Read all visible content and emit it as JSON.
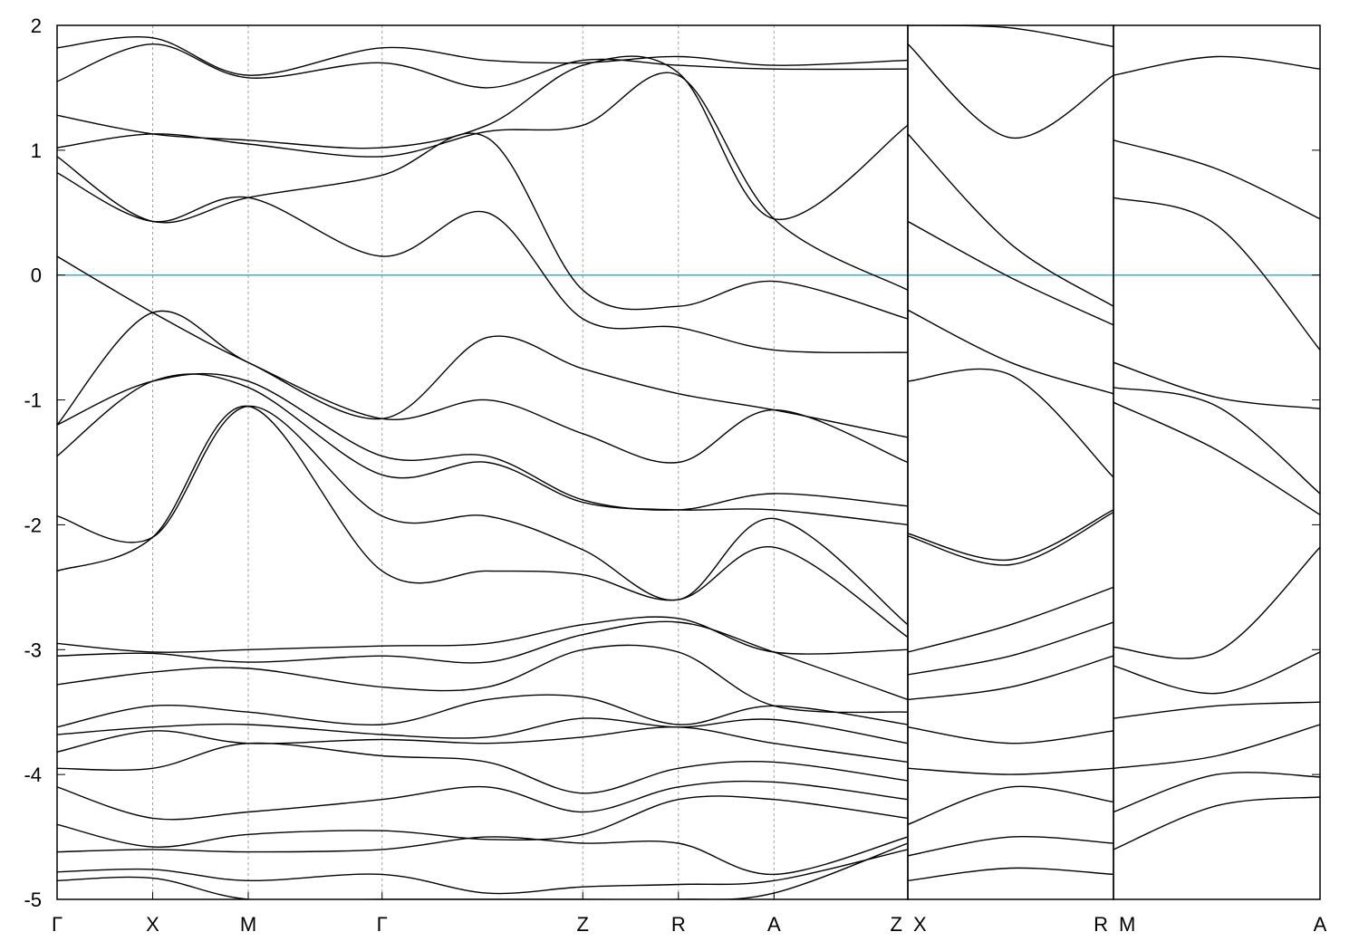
{
  "chart_data": {
    "type": "line",
    "title": "",
    "xlabel": "",
    "ylabel": "",
    "ylim": [
      -5,
      2
    ],
    "yticks": [
      "2",
      "1",
      "0",
      "-1",
      "-2",
      "-3",
      "-4",
      "-5"
    ],
    "fermi_level": 0,
    "colors": {
      "bands": "#000000",
      "fermi": "#4aa8c8",
      "separator": "#a0a0a0"
    },
    "kpoint_labels": [
      "Γ",
      "X",
      "M",
      "Γ",
      "Z",
      "R",
      "A",
      "Z",
      "X",
      "R",
      "M",
      "A"
    ],
    "segments": [
      {
        "path": [
          "Γ",
          "X",
          "M",
          "Γ",
          "Z",
          "R",
          "A",
          "Z"
        ],
        "kticks": [
          0,
          1,
          2,
          3.4,
          5.5,
          6.5,
          7.5,
          8.9
        ],
        "series": [
          {
            "k": [
              0,
              1,
              2,
              3.4,
              4.5,
              5.5,
              6.5,
              7.5,
              8.9
            ],
            "E": [
              -4.85,
              -4.83,
              -5.0,
              -5.0,
              -5.0,
              -5.0,
              -5.0,
              -4.95,
              -4.55
            ]
          },
          {
            "k": [
              0,
              1,
              2,
              3.4,
              4.5,
              5.5,
              6.5,
              7.5,
              8.9
            ],
            "E": [
              -4.78,
              -4.76,
              -4.85,
              -4.8,
              -4.95,
              -4.9,
              -4.88,
              -4.85,
              -4.6
            ]
          },
          {
            "k": [
              0,
              1,
              2,
              3.4,
              4.5,
              5.5,
              6.5,
              7.5,
              8.9
            ],
            "E": [
              -4.62,
              -4.6,
              -4.62,
              -4.6,
              -4.5,
              -4.55,
              -4.55,
              -4.8,
              -4.5
            ]
          },
          {
            "k": [
              0,
              1,
              2,
              3.4,
              4.5,
              5.5,
              6.5,
              7.5,
              8.9
            ],
            "E": [
              -4.4,
              -4.58,
              -4.48,
              -4.45,
              -4.52,
              -4.48,
              -4.2,
              -4.2,
              -4.35
            ]
          },
          {
            "k": [
              0,
              1,
              2,
              3.4,
              4.5,
              5.5,
              6.5,
              7.5,
              8.9
            ],
            "E": [
              -4.1,
              -4.35,
              -4.3,
              -4.2,
              -4.1,
              -4.3,
              -4.1,
              -4.06,
              -4.2
            ]
          },
          {
            "k": [
              0,
              1,
              2,
              3.4,
              4.5,
              5.5,
              6.5,
              7.5,
              8.9
            ],
            "E": [
              -3.95,
              -3.95,
              -3.75,
              -3.85,
              -3.9,
              -4.15,
              -3.95,
              -3.9,
              -4.05
            ]
          },
          {
            "k": [
              0,
              1,
              2,
              3.4,
              4.5,
              5.5,
              6.5,
              7.5,
              8.9
            ],
            "E": [
              -3.82,
              -3.65,
              -3.75,
              -3.72,
              -3.75,
              -3.7,
              -3.62,
              -3.75,
              -3.9
            ]
          },
          {
            "k": [
              0,
              1,
              2,
              3.4,
              4.5,
              5.5,
              6.5,
              7.5,
              8.9
            ],
            "E": [
              -3.68,
              -3.62,
              -3.6,
              -3.68,
              -3.7,
              -3.55,
              -3.62,
              -3.56,
              -3.75
            ]
          },
          {
            "k": [
              0,
              1,
              2,
              3.4,
              4.5,
              5.5,
              6.5,
              7.5,
              8.9
            ],
            "E": [
              -3.62,
              -3.45,
              -3.5,
              -3.6,
              -3.4,
              -3.38,
              -3.6,
              -3.45,
              -3.6
            ]
          },
          {
            "k": [
              0,
              1,
              2,
              3.4,
              4.5,
              5.5,
              6.5,
              7.5,
              8.9
            ],
            "E": [
              -3.28,
              -3.18,
              -3.15,
              -3.3,
              -3.3,
              -3.0,
              -3.02,
              -3.45,
              -3.5
            ]
          },
          {
            "k": [
              0,
              1,
              2,
              3.4,
              4.5,
              5.5,
              6.5,
              7.5,
              8.9
            ],
            "E": [
              -3.05,
              -3.03,
              -3.1,
              -3.05,
              -3.1,
              -2.88,
              -2.78,
              -3.02,
              -3.4
            ]
          },
          {
            "k": [
              0,
              1,
              2,
              3.4,
              4.5,
              5.5,
              6.5,
              7.5,
              8.9
            ],
            "E": [
              -2.95,
              -3.02,
              -3.0,
              -2.97,
              -2.95,
              -2.8,
              -2.75,
              -3.02,
              -3.0
            ]
          },
          {
            "k": [
              0,
              1,
              2,
              3.4,
              4.5,
              5.5,
              6.5,
              7.5,
              8.9
            ],
            "E": [
              -2.37,
              -2.1,
              -1.05,
              -2.37,
              -2.37,
              -2.4,
              -2.6,
              -2.18,
              -2.9
            ]
          },
          {
            "k": [
              0,
              1,
              2,
              3.4,
              4.5,
              5.5,
              6.5,
              7.5,
              8.9
            ],
            "E": [
              -1.93,
              -2.1,
              -1.05,
              -1.93,
              -1.93,
              -2.2,
              -2.6,
              -1.95,
              -2.8
            ]
          },
          {
            "k": [
              0,
              1,
              2,
              3.4,
              4.5,
              5.5,
              6.5,
              7.5,
              8.9
            ],
            "E": [
              -1.45,
              -0.85,
              -0.9,
              -1.6,
              -1.5,
              -1.82,
              -1.88,
              -1.88,
              -2.0
            ]
          },
          {
            "k": [
              0,
              1,
              2,
              3.4,
              4.5,
              5.5,
              6.5,
              7.5,
              8.9
            ],
            "E": [
              -1.2,
              -0.85,
              -0.85,
              -1.45,
              -1.45,
              -1.8,
              -1.88,
              -1.75,
              -1.85
            ]
          },
          {
            "k": [
              0,
              1,
              2,
              3.4,
              4.5,
              5.5,
              6.5,
              7.5,
              8.9
            ],
            "E": [
              -1.2,
              -0.3,
              -0.7,
              -1.15,
              -1.0,
              -1.27,
              -1.5,
              -1.08,
              -1.5
            ]
          },
          {
            "k": [
              0,
              1,
              2,
              3.4,
              4.5,
              5.5,
              6.5,
              7.5,
              8.9
            ],
            "E": [
              0.15,
              -0.3,
              -0.7,
              -1.15,
              -0.5,
              -0.75,
              -0.95,
              -1.08,
              -1.3
            ]
          },
          {
            "k": [
              0,
              1,
              2,
              3.4,
              4.5,
              5.5,
              6.5,
              7.5,
              8.9
            ],
            "E": [
              0.82,
              0.43,
              0.62,
              0.15,
              0.5,
              -0.35,
              -0.42,
              -0.6,
              -0.62
            ]
          },
          {
            "k": [
              0,
              1,
              2,
              3.4,
              4.5,
              5.5,
              6.5,
              7.5,
              8.9
            ],
            "E": [
              0.95,
              0.43,
              0.62,
              0.8,
              1.1,
              -0.12,
              -0.25,
              -0.05,
              -0.35
            ]
          },
          {
            "k": [
              0,
              1,
              2,
              3.4,
              4.5,
              5.5,
              6.5,
              7.5,
              8.9
            ],
            "E": [
              1.02,
              1.13,
              1.05,
              0.95,
              1.15,
              1.2,
              1.6,
              0.45,
              -0.12
            ]
          },
          {
            "k": [
              0,
              1,
              2,
              3.4,
              4.5,
              5.5,
              6.5,
              7.5,
              8.9
            ],
            "E": [
              1.28,
              1.13,
              1.08,
              1.02,
              1.2,
              1.68,
              1.62,
              0.45,
              1.2
            ]
          },
          {
            "k": [
              0,
              1,
              2,
              3.4,
              4.5,
              5.5,
              6.5,
              7.5,
              8.9
            ],
            "E": [
              1.55,
              1.85,
              1.58,
              1.7,
              1.5,
              1.72,
              1.68,
              1.65,
              1.65
            ]
          },
          {
            "k": [
              0,
              1,
              2,
              3.4,
              4.5,
              5.5,
              6.5,
              7.5,
              8.9
            ],
            "E": [
              1.82,
              1.9,
              1.6,
              1.82,
              1.72,
              1.7,
              1.75,
              1.68,
              1.72
            ]
          }
        ]
      },
      {
        "path": [
          "X",
          "R"
        ],
        "kticks": [
          0,
          1
        ],
        "series": [
          {
            "k": [
              0,
              0.5,
              1
            ],
            "E": [
              -4.85,
              -4.75,
              -4.8
            ]
          },
          {
            "k": [
              0,
              0.5,
              1
            ],
            "E": [
              -4.65,
              -4.5,
              -4.55
            ]
          },
          {
            "k": [
              0,
              0.5,
              1
            ],
            "E": [
              -4.4,
              -4.1,
              -4.22
            ]
          },
          {
            "k": [
              0,
              0.5,
              1
            ],
            "E": [
              -3.95,
              -4.0,
              -3.95
            ]
          },
          {
            "k": [
              0,
              0.5,
              1
            ],
            "E": [
              -3.62,
              -3.75,
              -3.65
            ]
          },
          {
            "k": [
              0,
              0.5,
              1
            ],
            "E": [
              -3.4,
              -3.3,
              -3.05
            ]
          },
          {
            "k": [
              0,
              0.5,
              1
            ],
            "E": [
              -3.2,
              -3.05,
              -2.78
            ]
          },
          {
            "k": [
              0,
              0.5,
              1
            ],
            "E": [
              -3.02,
              -2.8,
              -2.5
            ]
          },
          {
            "k": [
              0,
              0.5,
              1
            ],
            "E": [
              -2.07,
              -2.28,
              -1.88
            ]
          },
          {
            "k": [
              0,
              0.5,
              1
            ],
            "E": [
              -2.09,
              -2.32,
              -1.9
            ]
          },
          {
            "k": [
              0,
              0.5,
              1
            ],
            "E": [
              -0.85,
              -0.8,
              -1.62
            ]
          },
          {
            "k": [
              0,
              0.5,
              1
            ],
            "E": [
              -0.28,
              -0.7,
              -0.95
            ]
          },
          {
            "k": [
              0,
              0.5,
              1
            ],
            "E": [
              0.43,
              -0.02,
              -0.4
            ]
          },
          {
            "k": [
              0,
              0.5,
              1
            ],
            "E": [
              1.13,
              0.25,
              -0.25
            ]
          },
          {
            "k": [
              0,
              0.5,
              1
            ],
            "E": [
              1.85,
              1.1,
              1.6
            ]
          },
          {
            "k": [
              0,
              0.5,
              1
            ],
            "E": [
              2.0,
              1.98,
              1.83
            ]
          }
        ]
      },
      {
        "path": [
          "M",
          "A"
        ],
        "kticks": [
          0,
          1
        ],
        "series": [
          {
            "k": [
              0,
              0.5,
              1
            ],
            "E": [
              -4.6,
              -4.25,
              -4.18
            ]
          },
          {
            "k": [
              0,
              0.5,
              1
            ],
            "E": [
              -4.3,
              -4.0,
              -4.02
            ]
          },
          {
            "k": [
              0,
              0.5,
              1
            ],
            "E": [
              -3.95,
              -3.85,
              -3.6
            ]
          },
          {
            "k": [
              0,
              0.5,
              1
            ],
            "E": [
              -3.55,
              -3.45,
              -3.42
            ]
          },
          {
            "k": [
              0,
              0.5,
              1
            ],
            "E": [
              -3.13,
              -3.35,
              -3.02
            ]
          },
          {
            "k": [
              0,
              0.5,
              1
            ],
            "E": [
              -2.98,
              -3.02,
              -2.18
            ]
          },
          {
            "k": [
              0,
              0.5,
              1
            ],
            "E": [
              -1.02,
              -1.4,
              -1.92
            ]
          },
          {
            "k": [
              0,
              0.5,
              1
            ],
            "E": [
              -0.9,
              -1.05,
              -1.75
            ]
          },
          {
            "k": [
              0,
              0.5,
              1
            ],
            "E": [
              -0.7,
              -0.98,
              -1.07
            ]
          },
          {
            "k": [
              0,
              0.5,
              1
            ],
            "E": [
              0.62,
              0.4,
              -0.6
            ]
          },
          {
            "k": [
              0,
              0.5,
              1
            ],
            "E": [
              1.08,
              0.85,
              0.45
            ]
          },
          {
            "k": [
              0,
              0.5,
              1
            ],
            "E": [
              1.6,
              1.75,
              1.65
            ]
          }
        ]
      }
    ]
  }
}
